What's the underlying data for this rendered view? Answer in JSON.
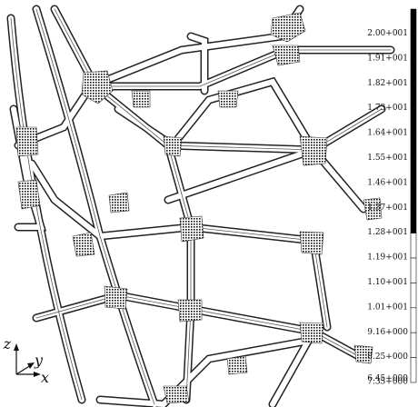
{
  "legend": {
    "labels": [
      "2.00+001",
      "1.91+001",
      "1.82+001",
      "1.73+001",
      "1.64+001",
      "1.55+001",
      "1.46+001",
      "1.37+001",
      "1.28+001",
      "1.19+001",
      "1.10+001",
      "1.01+001",
      "9.16+000",
      "8.25+000",
      "7.35+000",
      "6.45+000"
    ],
    "colors": [
      "#000000",
      "#ffffff"
    ]
  },
  "triad": {
    "z": "z",
    "y": "y",
    "x": "x"
  }
}
